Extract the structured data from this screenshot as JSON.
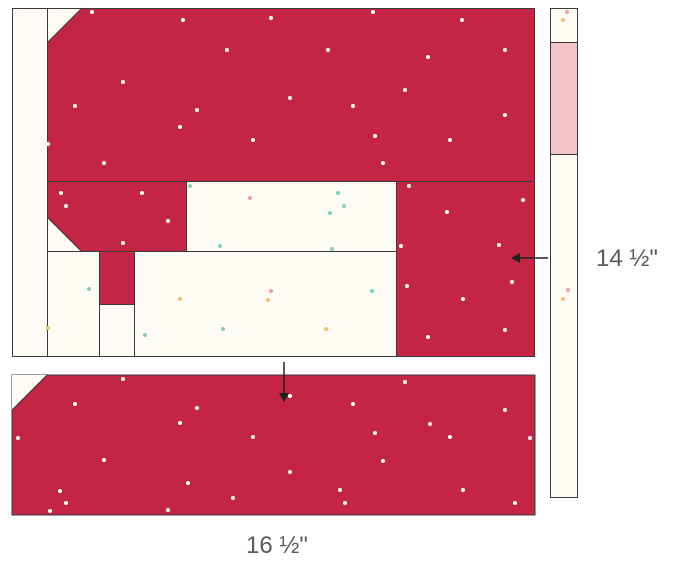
{
  "dimensions": {
    "height_label": "14 ½\"",
    "width_label": "16 ½\""
  },
  "colors": {
    "red_fabric": "#c42544",
    "cream_fabric": "#fdfbf3",
    "pink_fabric": "#f4c3c7",
    "seam_line": "#3a3a3a",
    "dot_white": "#ffffff",
    "dot_mint": "#7dd3bb",
    "dot_gold": "#f0c36a",
    "dot_pink": "#f59aa5",
    "label_text": "#5a5a5a"
  },
  "icons": [
    "arrow-left-icon",
    "arrow-down-icon"
  ]
}
